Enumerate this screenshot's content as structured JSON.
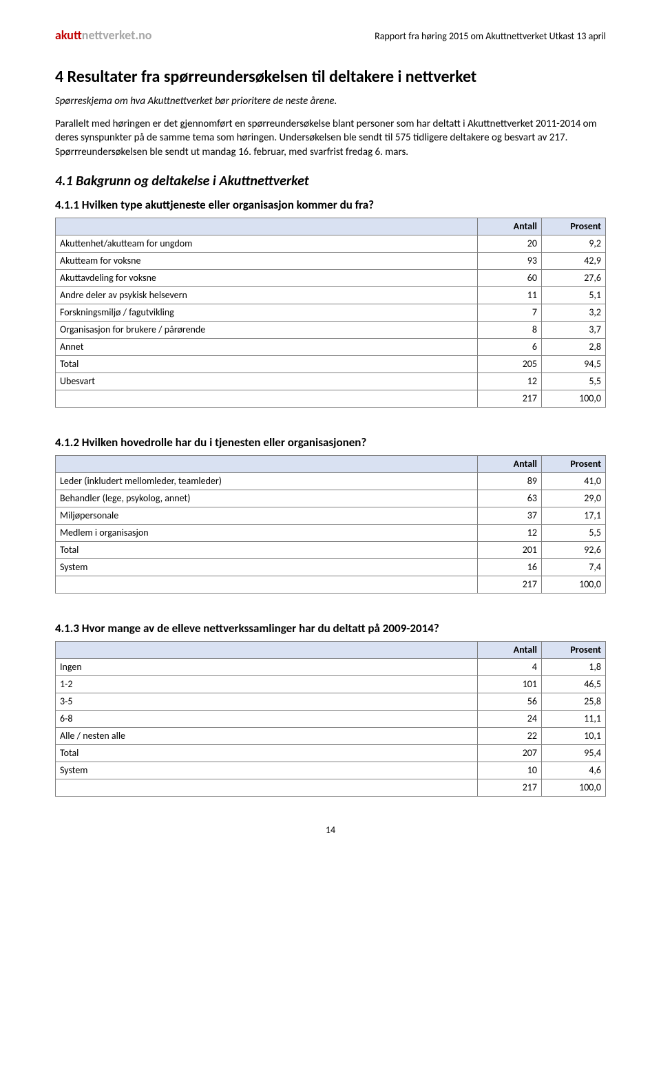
{
  "header": {
    "logo_akutt": "akutt",
    "logo_rest": "nettverket.no",
    "doc_title": "Rapport fra høring 2015 om Akuttnettverket Utkast 13 april"
  },
  "h1": "4   Resultater fra spørreundersøkelsen til deltakere i nettverket",
  "intro": "Spørreskjema om hva Akuttnettverket bør prioritere de neste årene.",
  "body": "Parallelt med høringen er det gjennomført en spørreundersøkelse blant personer som har deltatt i Akuttnettverket 2011-2014 om deres synspunkter på de samme tema som høringen. Undersøkelsen ble sendt til 575 tidligere deltakere og besvart av 217. Spørrreundersøkelsen ble sendt ut mandag 16. februar, med svarfrist fredag 6. mars.",
  "h2": "4.1   Bakgrunn og deltakelse i Akuttnettverket",
  "section1": {
    "title": "4.1.1 Hvilken type akuttjeneste eller organisasjon kommer du fra?",
    "col_antall": "Antall",
    "col_prosent": "Prosent",
    "rows": [
      {
        "label": "Akuttenhet/akutteam for ungdom",
        "antall": "20",
        "prosent": "9,2"
      },
      {
        "label": "Akutteam for voksne",
        "antall": "93",
        "prosent": "42,9"
      },
      {
        "label": "Akuttavdeling for voksne",
        "antall": "60",
        "prosent": "27,6"
      },
      {
        "label": "Andre deler av psykisk helsevern",
        "antall": "11",
        "prosent": "5,1"
      },
      {
        "label": "Forskningsmiljø / fagutvikling",
        "antall": "7",
        "prosent": "3,2"
      },
      {
        "label": "Organisasjon for brukere / pårørende",
        "antall": "8",
        "prosent": "3,7"
      },
      {
        "label": "Annet",
        "antall": "6",
        "prosent": "2,8"
      },
      {
        "label": "Total",
        "antall": "205",
        "prosent": "94,5"
      },
      {
        "label": "Ubesvart",
        "antall": "12",
        "prosent": "5,5"
      },
      {
        "label": "",
        "antall": "217",
        "prosent": "100,0"
      }
    ]
  },
  "section2": {
    "title": "4.1.2 Hvilken hovedrolle har du i tjenesten eller organisasjonen?",
    "col_antall": "Antall",
    "col_prosent": "Prosent",
    "rows": [
      {
        "label": "Leder (inkludert mellomleder, teamleder)",
        "antall": "89",
        "prosent": "41,0"
      },
      {
        "label": "Behandler (lege, psykolog, annet)",
        "antall": "63",
        "prosent": "29,0"
      },
      {
        "label": "Miljøpersonale",
        "antall": "37",
        "prosent": "17,1"
      },
      {
        "label": "Medlem i organisasjon",
        "antall": "12",
        "prosent": "5,5"
      },
      {
        "label": "Total",
        "antall": "201",
        "prosent": "92,6"
      },
      {
        "label": "System",
        "antall": "16",
        "prosent": "7,4"
      },
      {
        "label": "",
        "antall": "217",
        "prosent": "100,0"
      }
    ]
  },
  "section3": {
    "title": "4.1.3 Hvor mange av de elleve nettverkssamlinger har du deltatt på 2009-2014?",
    "col_antall": "Antall",
    "col_prosent": "Prosent",
    "rows": [
      {
        "label": "Ingen",
        "antall": "4",
        "prosent": "1,8"
      },
      {
        "label": "1-2",
        "antall": "101",
        "prosent": "46,5"
      },
      {
        "label": "3-5",
        "antall": "56",
        "prosent": "25,8"
      },
      {
        "label": "6-8",
        "antall": "24",
        "prosent": "11,1"
      },
      {
        "label": "Alle / nesten alle",
        "antall": "22",
        "prosent": "10,1"
      },
      {
        "label": "Total",
        "antall": "207",
        "prosent": "95,4"
      },
      {
        "label": "System",
        "antall": "10",
        "prosent": "4,6"
      },
      {
        "label": "",
        "antall": "217",
        "prosent": "100,0"
      }
    ]
  },
  "page_number": "14",
  "styling": {
    "header_bg": "#d9e1f2",
    "border_color": "#7f7f7f",
    "logo_red": "#c00000",
    "logo_gray": "#a6a6a6",
    "body_font_size": 15,
    "table_font_size": 14
  }
}
